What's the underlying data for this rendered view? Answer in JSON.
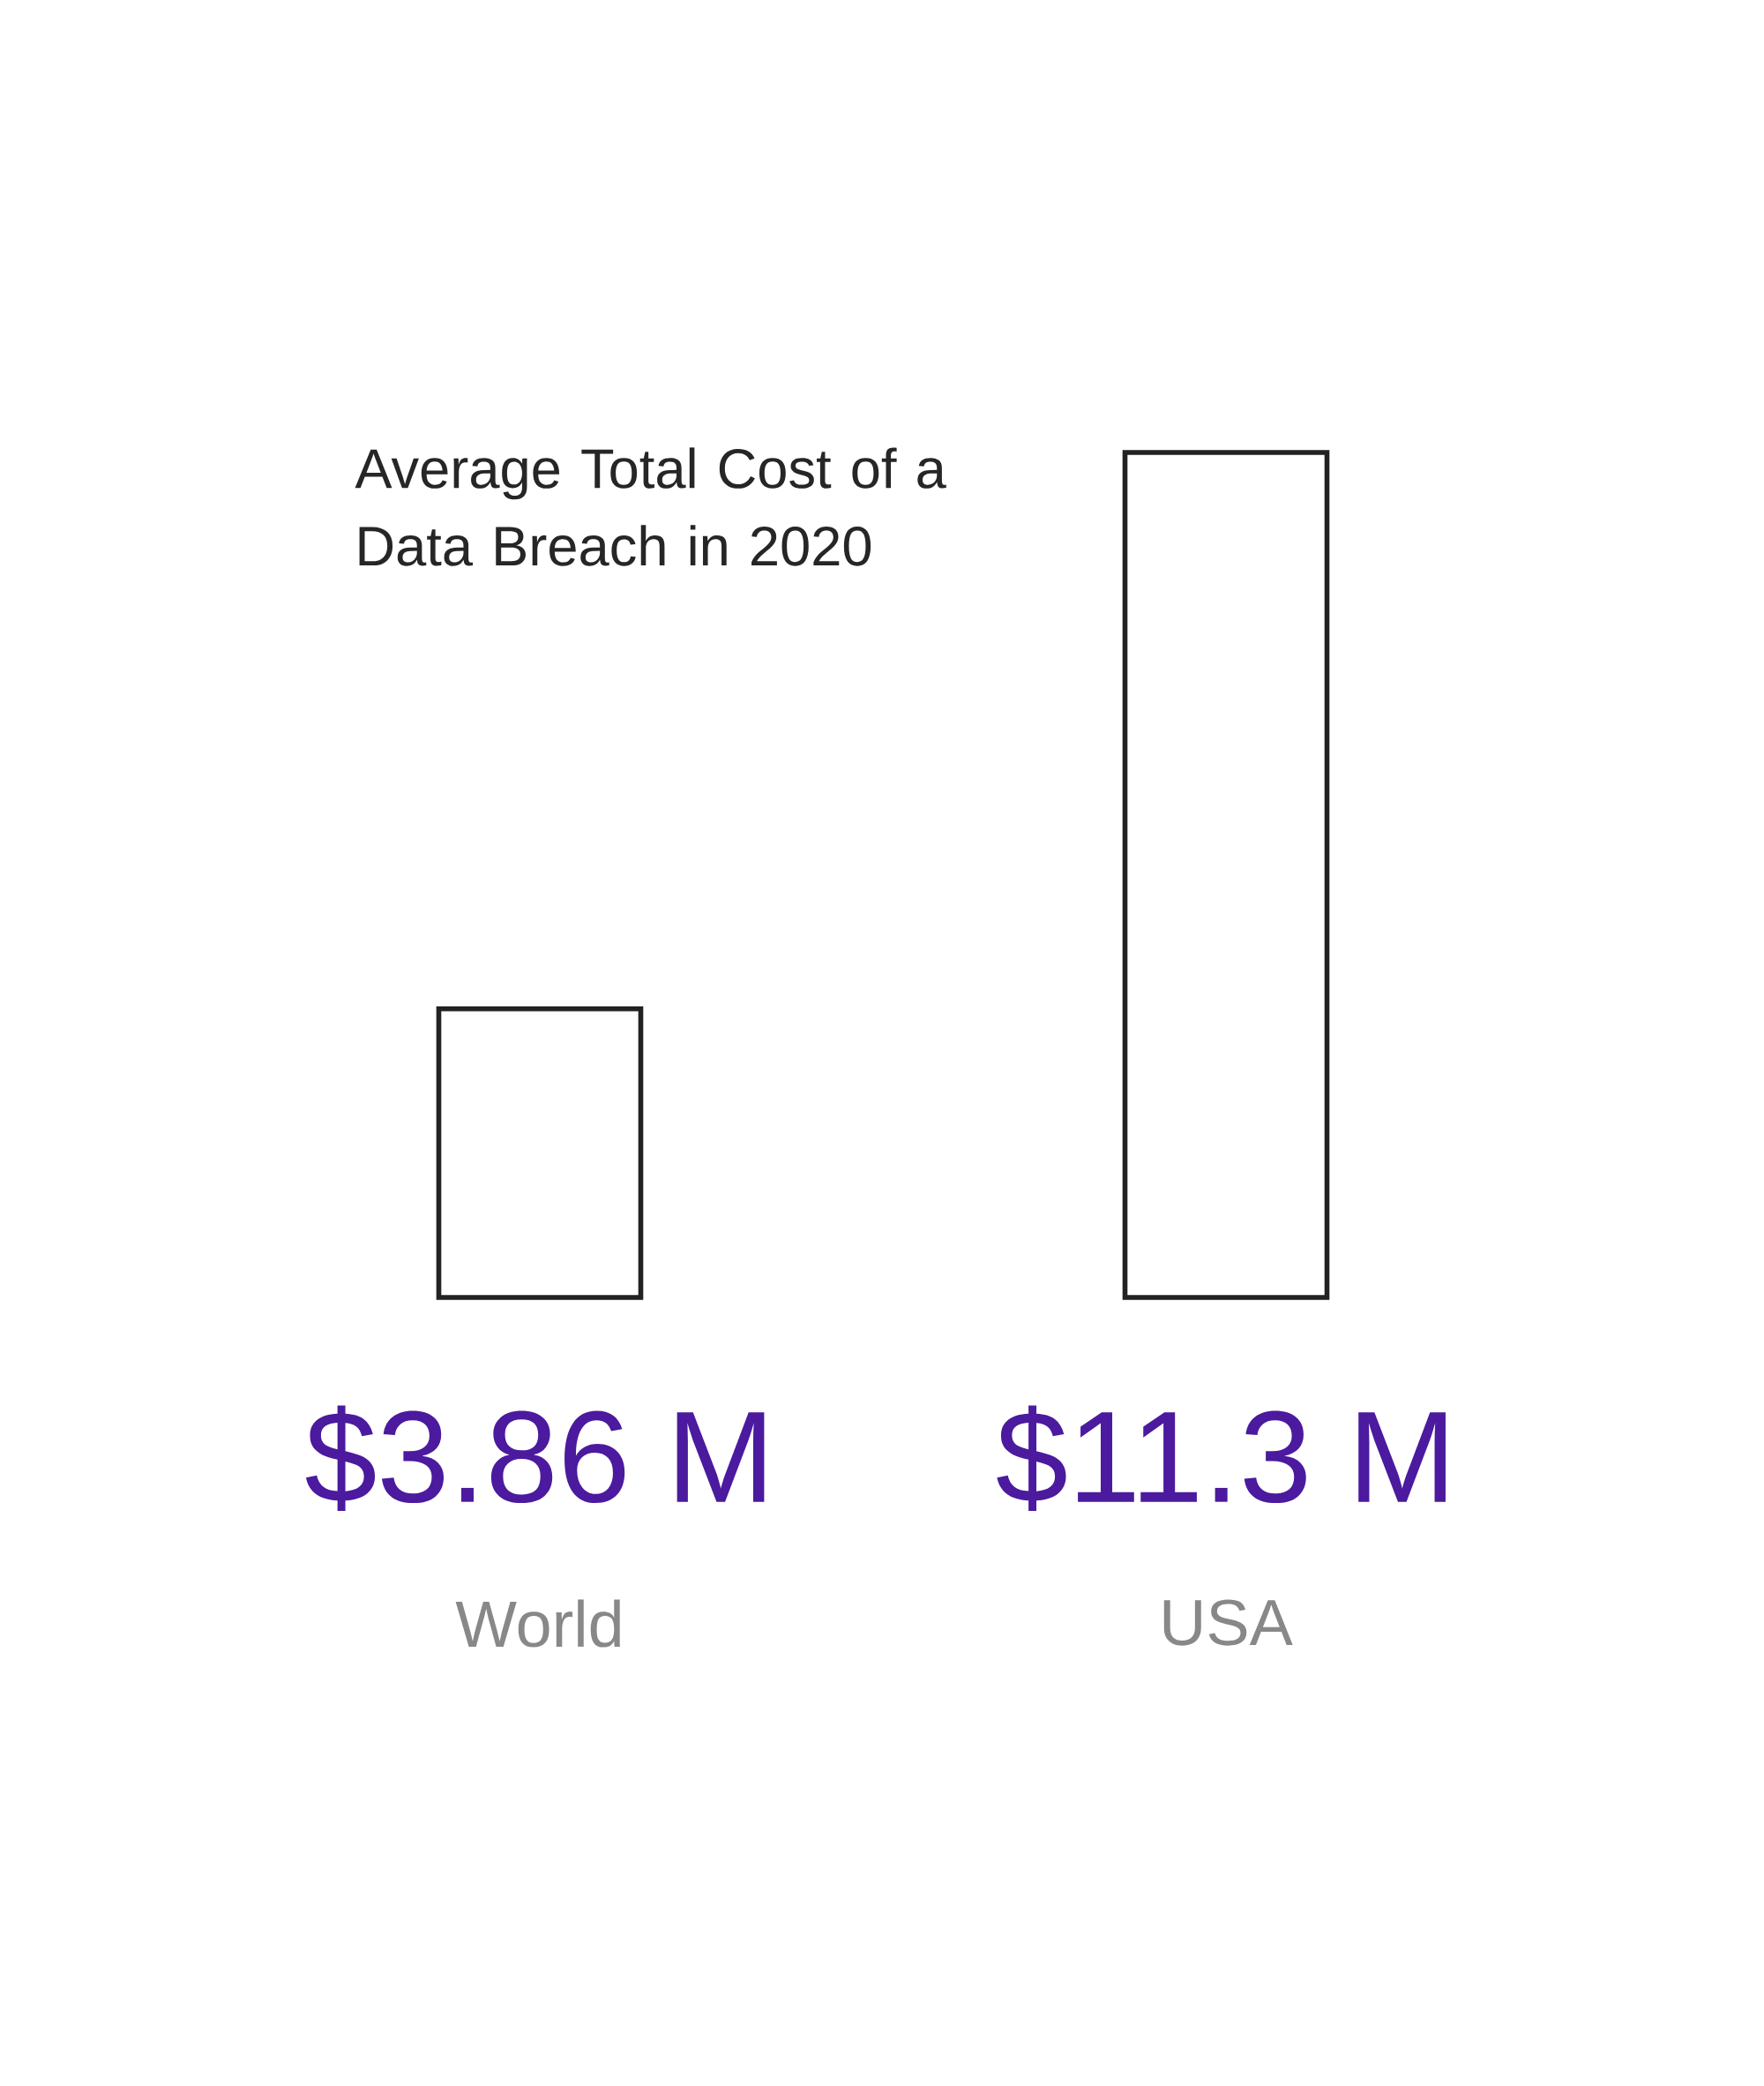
{
  "chart_data": {
    "type": "bar",
    "title": "Average Total Cost of a Data Breach in 2020",
    "categories": [
      "World",
      "USA"
    ],
    "values": [
      3.86,
      11.3
    ],
    "value_labels": [
      "$3.86 M",
      "$11.3 M"
    ],
    "color": "#222222",
    "tick_labels": "x"
  }
}
